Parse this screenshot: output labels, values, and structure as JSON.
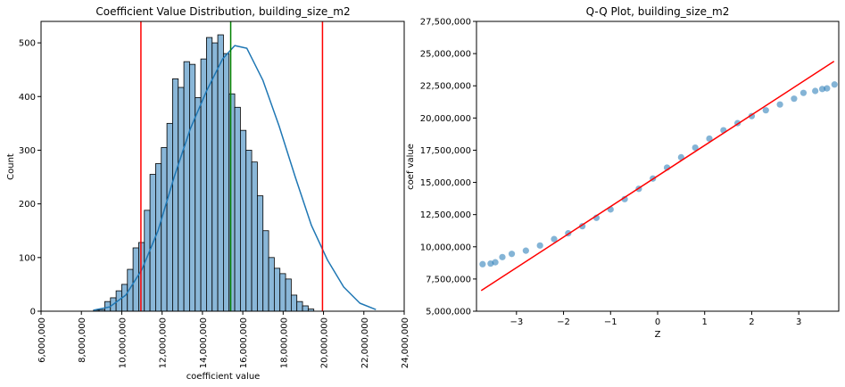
{
  "chart_data": [
    {
      "type": "bar",
      "title": "Coefficient Value Distribution, building_size_m2",
      "xlabel": "coefficient value",
      "ylabel": "Count",
      "xlim": [
        6000000,
        24000000
      ],
      "ylim": [
        0,
        540
      ],
      "x_ticks": [
        6000000,
        8000000,
        10000000,
        12000000,
        14000000,
        16000000,
        18000000,
        20000000,
        22000000,
        24000000
      ],
      "x_tick_labels": [
        "6,000,000",
        "8,000,000",
        "10,000,000",
        "12,000,000",
        "14,000,000",
        "16,000,000",
        "18,000,000",
        "20,000,000",
        "22,000,000",
        "24,000,000"
      ],
      "y_ticks": [
        0,
        100,
        200,
        300,
        400,
        500
      ],
      "y_tick_labels": [
        "0",
        "100",
        "200",
        "300",
        "400",
        "500"
      ],
      "bin_start": 8600000,
      "bin_width": 280000,
      "counts": [
        2,
        3,
        18,
        25,
        38,
        50,
        78,
        118,
        128,
        188,
        255,
        275,
        305,
        350,
        433,
        417,
        465,
        460,
        398,
        470,
        510,
        500,
        515,
        480,
        405,
        380,
        337,
        300,
        278,
        215,
        150,
        100,
        80,
        70,
        60,
        30,
        18,
        10,
        4
      ],
      "series": [
        {
          "type": "kde",
          "x": [
            8600000,
            9400000,
            10200000,
            11000000,
            11800000,
            12600000,
            13400000,
            14200000,
            15000000,
            15600000,
            16200000,
            17000000,
            17800000,
            18600000,
            19400000,
            20200000,
            21000000,
            21800000,
            22600000
          ],
          "values": [
            2,
            8,
            30,
            78,
            150,
            250,
            340,
            410,
            470,
            495,
            490,
            430,
            345,
            250,
            160,
            95,
            45,
            15,
            3
          ]
        }
      ],
      "vlines": [
        {
          "x": 10950000,
          "color": "#ff0000"
        },
        {
          "x": 15400000,
          "color": "#008000"
        },
        {
          "x": 19950000,
          "color": "#ff0000"
        }
      ],
      "bar_color": "#8ab7d8",
      "kde_color": "#1f77b4",
      "grid": false
    },
    {
      "type": "scatter",
      "title": "Q-Q Plot, building_size_m2",
      "xlabel": "Z",
      "ylabel": "coef value",
      "xlim": [
        -3.85,
        3.85
      ],
      "ylim": [
        5000000,
        27500000
      ],
      "x_ticks": [
        -3,
        -2,
        -1,
        0,
        1,
        2,
        3
      ],
      "x_tick_labels": [
        "−3",
        "−2",
        "−1",
        "0",
        "1",
        "2",
        "3"
      ],
      "y_ticks": [
        5000000,
        7500000,
        10000000,
        12500000,
        15000000,
        17500000,
        20000000,
        22500000,
        25000000,
        27500000
      ],
      "y_tick_labels": [
        "5,000,000",
        "7,500,000",
        "10,000,000",
        "12,500,000",
        "15,000,000",
        "17,500,000",
        "20,000,000",
        "22,500,000",
        "25,000,000",
        "27,500,000"
      ],
      "points": [
        [
          -3.72,
          8650000
        ],
        [
          -3.55,
          8700000
        ],
        [
          -3.45,
          8800000
        ],
        [
          -3.3,
          9200000
        ],
        [
          -3.1,
          9450000
        ],
        [
          -2.8,
          9700000
        ],
        [
          -2.5,
          10100000
        ],
        [
          -2.2,
          10600000
        ],
        [
          -1.9,
          11050000
        ],
        [
          -1.6,
          11600000
        ],
        [
          -1.3,
          12250000
        ],
        [
          -1.0,
          12900000
        ],
        [
          -0.7,
          13700000
        ],
        [
          -0.4,
          14500000
        ],
        [
          -0.1,
          15300000
        ],
        [
          0.2,
          16150000
        ],
        [
          0.5,
          16950000
        ],
        [
          0.8,
          17700000
        ],
        [
          1.1,
          18400000
        ],
        [
          1.4,
          19050000
        ],
        [
          1.7,
          19600000
        ],
        [
          2.0,
          20150000
        ],
        [
          2.3,
          20600000
        ],
        [
          2.6,
          21050000
        ],
        [
          2.9,
          21500000
        ],
        [
          3.1,
          21950000
        ],
        [
          3.35,
          22100000
        ],
        [
          3.5,
          22250000
        ],
        [
          3.6,
          22300000
        ],
        [
          3.76,
          22600000
        ]
      ],
      "reference_line": {
        "x": [
          -3.75,
          3.75
        ],
        "y": [
          6600000,
          24400000
        ],
        "color": "#ff0000"
      },
      "point_color": "#1f77b4",
      "grid": false
    }
  ]
}
